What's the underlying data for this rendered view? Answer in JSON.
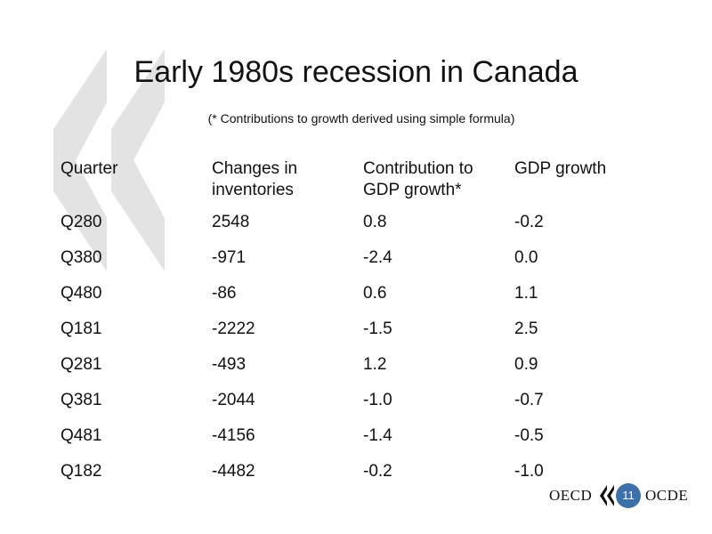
{
  "slide": {
    "title": "Early 1980s recession in Canada",
    "subtitle": "(* Contributions to growth derived using simple formula)",
    "page_number": "11"
  },
  "table": {
    "headers": {
      "quarter": "Quarter",
      "inventories": "Changes in\ninventories",
      "contribution": "Contribution to\nGDP growth*",
      "gdp": "GDP growth"
    },
    "rows": [
      {
        "quarter": "Q280",
        "inventories": "2548",
        "contribution": "0.8",
        "gdp": "-0.2"
      },
      {
        "quarter": "Q380",
        "inventories": "-971",
        "contribution": "-2.4",
        "gdp": "0.0"
      },
      {
        "quarter": "Q480",
        "inventories": "-86",
        "contribution": "0.6",
        "gdp": "1.1"
      },
      {
        "quarter": "Q181",
        "inventories": "-2222",
        "contribution": "-1.5",
        "gdp": "2.5"
      },
      {
        "quarter": "Q281",
        "inventories": "-493",
        "contribution": "1.2",
        "gdp": "0.9"
      },
      {
        "quarter": "Q381",
        "inventories": "-2044",
        "contribution": "-1.0",
        "gdp": "-0.7"
      },
      {
        "quarter": "Q481",
        "inventories": "-4156",
        "contribution": "-1.4",
        "gdp": "-0.5"
      },
      {
        "quarter": "Q182",
        "inventories": "-4482",
        "contribution": "-0.2",
        "gdp": "-1.0"
      }
    ]
  },
  "footer": {
    "logo_left": "OECD",
    "logo_right": "OCDE"
  },
  "colors": {
    "chevron": "#e3e3e3",
    "badge": "#3d6fa8"
  }
}
